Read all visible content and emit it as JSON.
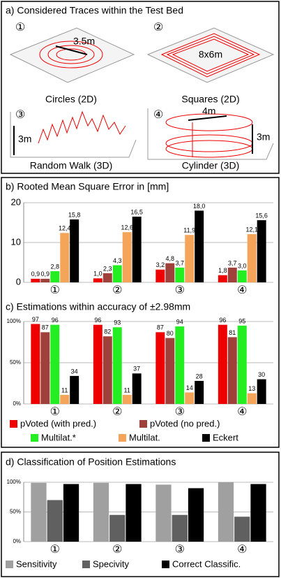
{
  "panel_a": {
    "title": "a) Considered Traces within the Test Bed",
    "items": [
      {
        "number": "①",
        "dimensions": [
          "3.5m"
        ],
        "caption": "Circles (2D)"
      },
      {
        "number": "②",
        "dimensions": [
          "8x6m"
        ],
        "caption": "Squares (2D)"
      },
      {
        "number": "③",
        "dimensions": [
          "3m"
        ],
        "caption": "Random Walk (3D)"
      },
      {
        "number": "④",
        "dimensions": [
          "4m",
          "3m"
        ],
        "caption": "Cylinder (3D)"
      }
    ]
  },
  "chart_data": [
    {
      "type": "bar",
      "title": "b) Rooted Mean Square Error in [mm]",
      "categories": [
        "①",
        "②",
        "③",
        "④"
      ],
      "ylim": [
        0,
        20
      ],
      "yticks": [
        0,
        10,
        20
      ],
      "grid": true,
      "series": [
        {
          "color": "#ee0000",
          "values": [
            0.9,
            1.0,
            3.2,
            1.8
          ],
          "value_labels": [
            "0,9",
            "1,0",
            "3,2",
            "1,8"
          ]
        },
        {
          "color": "#a0403a",
          "values": [
            0.9,
            2.3,
            4.8,
            3.7
          ],
          "value_labels": [
            "0,9",
            "2,3",
            "4,8",
            "3,7"
          ]
        },
        {
          "color": "#22ee22",
          "values": [
            2.8,
            4.3,
            3.7,
            3.0
          ],
          "value_labels": [
            "2,8",
            "4,3",
            "3,7",
            "3,0"
          ]
        },
        {
          "color": "#f4a55a",
          "values": [
            12.4,
            12.6,
            11.9,
            12.1
          ],
          "value_labels": [
            "12,4",
            "12,6",
            "11,9",
            "12,1"
          ]
        },
        {
          "color": "#000000",
          "values": [
            15.8,
            16.5,
            18.0,
            15.6
          ],
          "value_labels": [
            "15,8",
            "16,5",
            "18,0",
            "15,6"
          ]
        }
      ]
    },
    {
      "type": "bar",
      "title": "c) Estimations within accuracy of ±2.98mm",
      "categories": [
        "①",
        "②",
        "③",
        "④"
      ],
      "ylim": [
        0,
        100
      ],
      "yticks": [
        {
          "value": 0,
          "label": "0%"
        },
        {
          "value": 50,
          "label": "50%"
        },
        {
          "value": 100,
          "label": "100%"
        }
      ],
      "grid": true,
      "series": [
        {
          "name": "pVoted (with pred.)",
          "color": "#ee0000",
          "values": [
            97,
            96,
            87,
            96
          ]
        },
        {
          "name": "pVoted (no pred.)",
          "color": "#a0403a",
          "values": [
            87,
            82,
            80,
            81
          ]
        },
        {
          "name": "Multilat.*",
          "color": "#22ee22",
          "values": [
            96,
            93,
            94,
            95
          ]
        },
        {
          "name": "Multilat.",
          "color": "#f4a55a",
          "values": [
            11,
            11,
            14,
            13
          ]
        },
        {
          "name": "Eckert",
          "color": "#000000",
          "values": [
            34,
            37,
            28,
            30
          ]
        }
      ]
    },
    {
      "type": "bar",
      "title": "d) Classification of Position Estimations",
      "categories": [
        "①",
        "②",
        "③",
        "④"
      ],
      "ylim": [
        0,
        100
      ],
      "yticks": [
        {
          "value": 0,
          "label": "0%"
        },
        {
          "value": 50,
          "label": "50%"
        },
        {
          "value": 100,
          "label": "100%"
        }
      ],
      "grid": true,
      "series": [
        {
          "name": "Sensitivity",
          "color": "#a0a0a0",
          "values": [
            99,
            99,
            96,
            100
          ]
        },
        {
          "name": "Specivity",
          "color": "#606060",
          "values": [
            70,
            45,
            45,
            42
          ]
        },
        {
          "name": "Correct Classific.",
          "color": "#000000",
          "values": [
            97,
            97,
            90,
            97
          ]
        }
      ]
    }
  ]
}
